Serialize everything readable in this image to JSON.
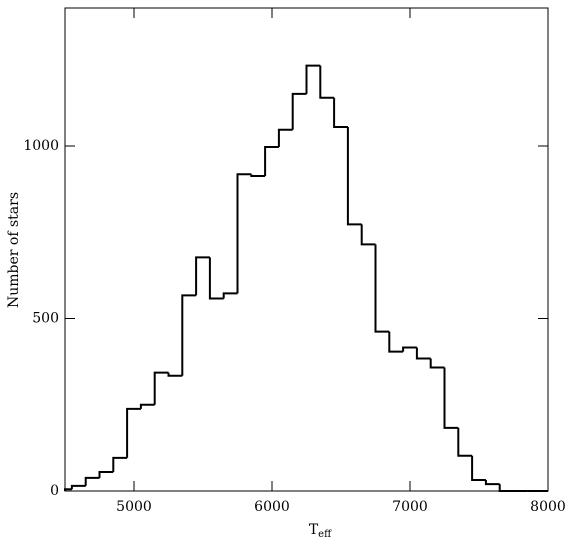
{
  "chart_data": {
    "type": "histogram",
    "xlabel": "T",
    "xlabel_sub": "eff",
    "ylabel": "Number of stars",
    "bins": [
      4500,
      4550,
      4650,
      4750,
      4850,
      4950,
      5050,
      5150,
      5250,
      5350,
      5450,
      5550,
      5650,
      5750,
      5850,
      5950,
      6050,
      6150,
      6250,
      6350,
      6450,
      6550,
      6650,
      6750,
      6850,
      6950,
      7050,
      7150,
      7250,
      7350,
      7450,
      7550,
      7650,
      7750,
      7850,
      7950,
      8000
    ],
    "counts": [
      5,
      15,
      38,
      55,
      96,
      238,
      250,
      343,
      334,
      567,
      677,
      558,
      573,
      918,
      913,
      997,
      1047,
      1151,
      1233,
      1140,
      1055,
      773,
      715,
      462,
      404,
      416,
      384,
      358,
      183,
      102,
      32,
      20,
      0,
      0,
      0,
      0
    ],
    "color": "#000000",
    "xlim": [
      4500,
      8000
    ],
    "xticks": [
      5000,
      6000,
      7000,
      8000
    ],
    "ylim": [
      0,
      1400
    ],
    "yticks": [
      0,
      500,
      1000
    ]
  }
}
